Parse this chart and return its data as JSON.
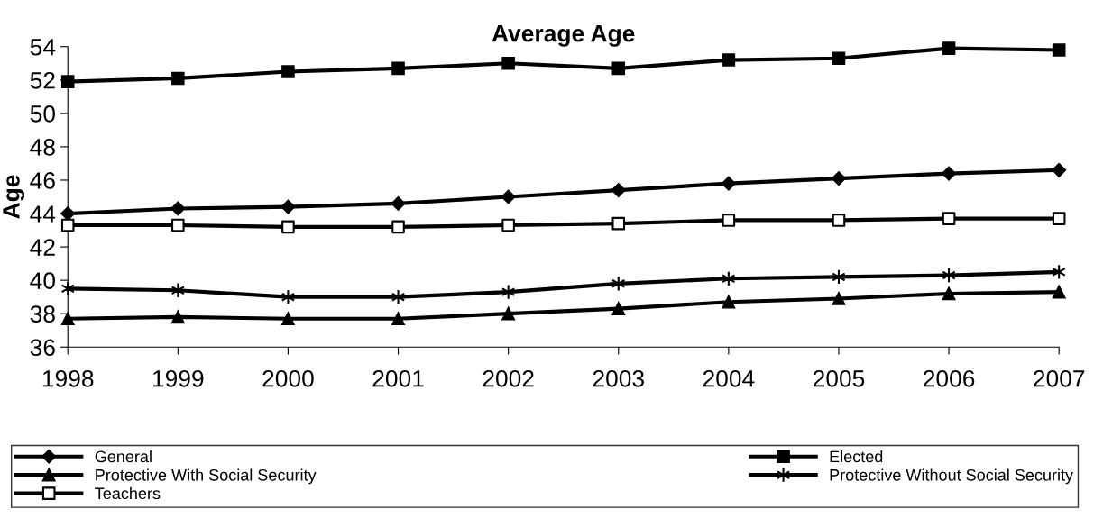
{
  "chart_data": {
    "type": "line",
    "title": "Average Age",
    "ylabel": "Age",
    "x": [
      1998,
      1999,
      2000,
      2001,
      2002,
      2003,
      2004,
      2005,
      2006,
      2007
    ],
    "xlim": [
      1998,
      2007
    ],
    "xticks": [
      1998,
      1999,
      2000,
      2001,
      2002,
      2003,
      2004,
      2005,
      2006,
      2007
    ],
    "ylim": [
      36,
      54
    ],
    "yticks": [
      36,
      38,
      40,
      42,
      44,
      46,
      48,
      50,
      52,
      54
    ],
    "grid": false,
    "legend": "bottom",
    "line_style": "solid",
    "series": [
      {
        "name": "General",
        "color": "#000000",
        "marker": "diamond",
        "values": [
          44.0,
          44.3,
          44.4,
          44.6,
          45.0,
          45.4,
          45.8,
          46.1,
          46.4,
          46.6
        ]
      },
      {
        "name": "Elected",
        "color": "#000000",
        "marker": "square",
        "values": [
          51.9,
          52.1,
          52.5,
          52.7,
          53.0,
          52.7,
          53.2,
          53.3,
          53.9,
          53.8
        ]
      },
      {
        "name": "Protective With Social Security",
        "color": "#000000",
        "marker": "triangle",
        "values": [
          37.7,
          37.8,
          37.7,
          37.7,
          38.0,
          38.3,
          38.7,
          38.9,
          39.2,
          39.3
        ]
      },
      {
        "name": "Protective Without Social Security",
        "color": "#000000",
        "marker": "cross",
        "values": [
          39.5,
          39.4,
          39.0,
          39.0,
          39.3,
          39.8,
          40.1,
          40.2,
          40.3,
          40.5
        ]
      },
      {
        "name": "Teachers",
        "color": "#000000",
        "marker": "square",
        "colors": [
          "#ffffff",
          "#ffffff",
          "#ffffff",
          "#ffffff",
          "#ffffff",
          "#ffffff",
          "#ffffff",
          "#ffffff",
          "#ffffff",
          "#ffffff"
        ],
        "values": [
          43.3,
          43.3,
          43.2,
          43.2,
          43.3,
          43.4,
          43.6,
          43.6,
          43.7,
          43.7
        ]
      }
    ]
  }
}
